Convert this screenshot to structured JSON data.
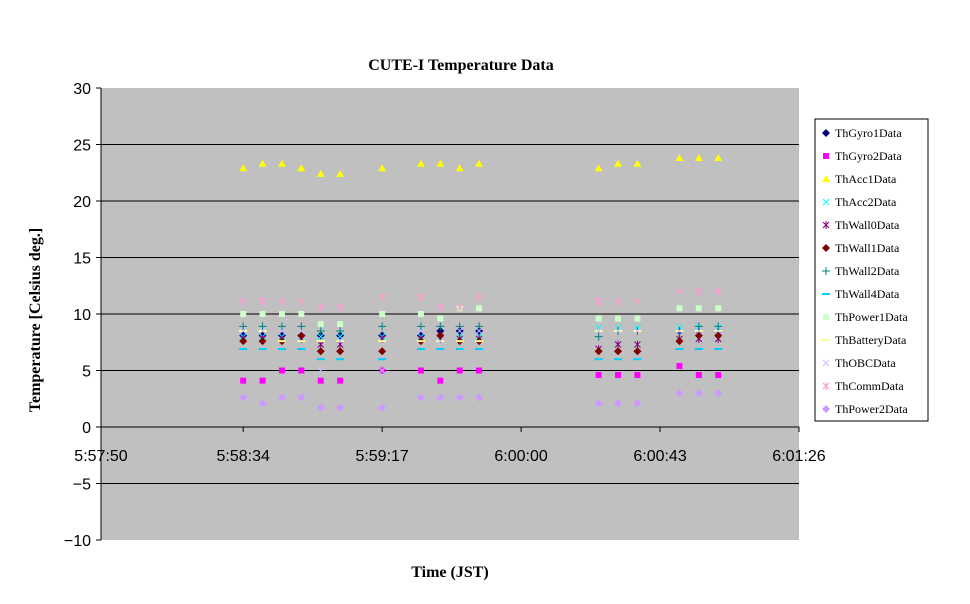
{
  "chart_data": {
    "type": "scatter",
    "title": "CUTE-I Temperature Data",
    "xlabel": "Time (JST)",
    "ylabel": "Temperature [Celsius deg.]",
    "ylim": [
      -10,
      30
    ],
    "yticks": [
      -10,
      -5,
      0,
      5,
      10,
      15,
      20,
      25,
      30
    ],
    "xlim": [
      "5:57:50",
      "6:01:26"
    ],
    "xticks": [
      "5:57:50",
      "5:58:34",
      "5:59:17",
      "6:00:00",
      "6:00:43",
      "6:01:26"
    ],
    "grid": "horizontal",
    "legend_position": "right",
    "background": "#c0c0c0",
    "x": [
      "5:58:34",
      "5:58:40",
      "5:58:46",
      "5:58:52",
      "5:58:58",
      "5:59:04",
      "5:59:17",
      "5:59:29",
      "5:59:35",
      "5:59:41",
      "5:59:47",
      "6:00:24",
      "6:00:30",
      "6:00:36",
      "6:00:49",
      "6:00:55",
      "6:01:01"
    ],
    "series": [
      {
        "name": "ThGyro1Data",
        "color": "#00007f",
        "marker": "diamond",
        "values": [
          8.1,
          8.1,
          8.1,
          8.1,
          8.1,
          8.1,
          8.1,
          8.1,
          8.5,
          8.5,
          8.5,
          null,
          null,
          null,
          8.5,
          8.5,
          8.5
        ]
      },
      {
        "name": "ThGyro2Data",
        "color": "#ff00ff",
        "marker": "square",
        "values": [
          4.1,
          4.1,
          5.0,
          5.0,
          4.1,
          4.1,
          5.0,
          5.0,
          4.1,
          5.0,
          5.0,
          4.6,
          4.6,
          4.6,
          5.4,
          4.6,
          4.6
        ]
      },
      {
        "name": "ThAcc1Data",
        "color": "#ffff00",
        "marker": "triangle",
        "values": [
          22.9,
          23.3,
          23.3,
          22.9,
          22.4,
          22.4,
          22.9,
          23.3,
          23.3,
          22.9,
          23.3,
          22.9,
          23.3,
          23.3,
          23.8,
          23.8,
          23.8
        ]
      },
      {
        "name": "ThAcc2Data",
        "color": "#00ffff",
        "marker": "x",
        "values": [
          8.0,
          8.0,
          8.0,
          8.0,
          8.0,
          8.0,
          8.0,
          8.0,
          8.0,
          8.0,
          8.0,
          8.8,
          8.8,
          8.8,
          8.8,
          8.8,
          8.8
        ]
      },
      {
        "name": "ThWall0Data",
        "color": "#800080",
        "marker": "star",
        "values": [
          7.8,
          7.8,
          7.8,
          7.8,
          7.3,
          7.3,
          7.8,
          7.8,
          7.8,
          7.8,
          7.8,
          6.9,
          7.3,
          7.3,
          7.8,
          7.8,
          7.8
        ]
      },
      {
        "name": "ThWall1Data",
        "color": "#800000",
        "marker": "diamond",
        "values": [
          7.6,
          7.6,
          7.6,
          8.1,
          6.7,
          6.7,
          6.7,
          7.6,
          8.1,
          7.6,
          7.6,
          6.7,
          6.7,
          6.7,
          7.6,
          8.1,
          8.1
        ]
      },
      {
        "name": "ThWall2Data",
        "color": "#008080",
        "marker": "plus",
        "values": [
          8.9,
          8.9,
          8.9,
          8.9,
          8.5,
          8.5,
          8.9,
          8.9,
          8.9,
          8.9,
          8.9,
          8.0,
          8.5,
          8.5,
          8.5,
          8.9,
          8.9
        ]
      },
      {
        "name": "ThWall4Data",
        "color": "#00ccff",
        "marker": "dash",
        "values": [
          6.9,
          6.9,
          6.9,
          6.9,
          6.0,
          6.0,
          6.0,
          6.9,
          6.9,
          6.9,
          6.9,
          6.0,
          6.0,
          6.0,
          6.9,
          6.9,
          6.9
        ]
      },
      {
        "name": "ThPower1Data",
        "color": "#ccffcc",
        "marker": "square",
        "values": [
          10.0,
          10.0,
          10.0,
          10.0,
          9.1,
          9.1,
          10.0,
          10.0,
          9.6,
          10.5,
          10.5,
          9.6,
          9.6,
          9.6,
          10.5,
          10.5,
          10.5
        ]
      },
      {
        "name": "ThBatteryData",
        "color": "#ffff99",
        "marker": "dash",
        "values": [
          8.5,
          8.5,
          7.6,
          7.6,
          7.6,
          7.6,
          7.6,
          7.6,
          7.6,
          7.6,
          7.6,
          8.5,
          8.5,
          8.5,
          8.5,
          8.5,
          8.5
        ]
      },
      {
        "name": "ThOBCData",
        "color": "#c0c0ff",
        "marker": "x",
        "values": [
          8.5,
          8.5,
          8.5,
          8.5,
          5.0,
          7.6,
          5.0,
          8.5,
          7.6,
          8.5,
          8.5,
          8.5,
          8.5,
          8.5,
          8.5,
          8.5,
          8.5
        ]
      },
      {
        "name": "ThCommData",
        "color": "#ff99cc",
        "marker": "star",
        "values": [
          11.1,
          11.1,
          11.1,
          11.1,
          10.6,
          10.6,
          11.5,
          11.5,
          10.6,
          10.6,
          11.5,
          11.1,
          11.1,
          11.1,
          12.0,
          12.0,
          12.0
        ]
      },
      {
        "name": "ThPower2Data",
        "color": "#cc99ff",
        "marker": "diamond",
        "values": [
          2.6,
          2.1,
          2.6,
          2.6,
          1.7,
          1.7,
          1.7,
          2.6,
          2.6,
          2.6,
          2.6,
          2.1,
          2.1,
          2.1,
          3.0,
          3.0,
          3.0
        ]
      }
    ]
  }
}
